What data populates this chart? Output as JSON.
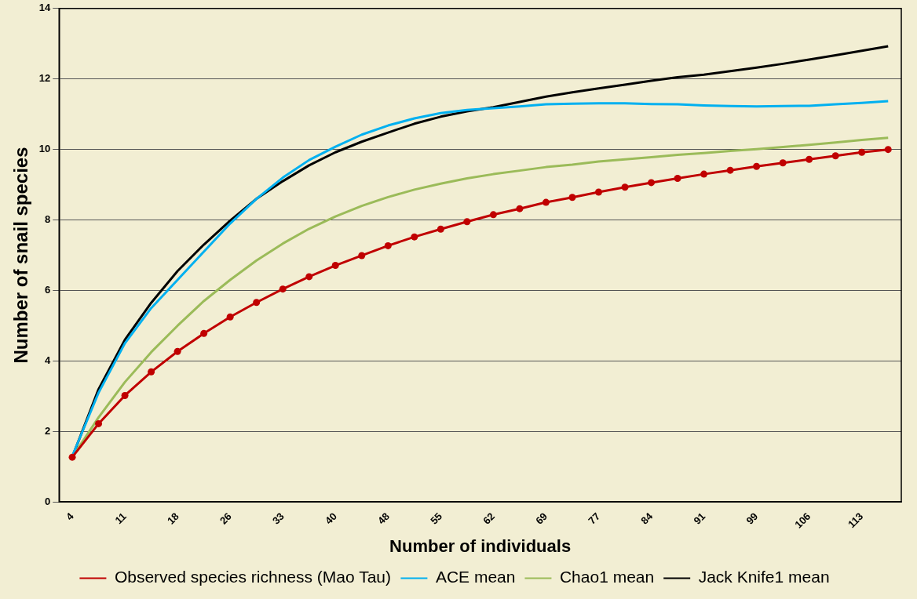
{
  "chart_data": {
    "type": "line",
    "xlabel": "Number of individuals",
    "ylabel": "Number of snail species",
    "categories": [
      "4",
      null,
      "11",
      null,
      "18",
      null,
      "26",
      null,
      "33",
      null,
      "40",
      null,
      "48",
      null,
      "55",
      null,
      "62",
      null,
      "69",
      null,
      "77",
      null,
      "84",
      null,
      "91",
      null,
      "99",
      null,
      "106",
      null,
      "113",
      null
    ],
    "series": [
      {
        "name": "Observed species richness (Mao Tau)",
        "color": "#c00000",
        "marker": "circle",
        "values": [
          1.27,
          2.22,
          3.02,
          3.69,
          4.27,
          4.78,
          5.25,
          5.66,
          6.04,
          6.39,
          6.71,
          6.99,
          7.27,
          7.52,
          7.74,
          7.95,
          8.15,
          8.32,
          8.5,
          8.64,
          8.79,
          8.93,
          9.06,
          9.18,
          9.3,
          9.41,
          9.52,
          9.62,
          9.72,
          9.82,
          9.92,
          10.0
        ]
      },
      {
        "name": "ACE mean",
        "color": "#00b0f0",
        "marker": "none",
        "values": [
          1.3,
          3.1,
          4.5,
          5.5,
          6.3,
          7.1,
          7.9,
          8.6,
          9.2,
          9.7,
          10.08,
          10.42,
          10.68,
          10.88,
          11.03,
          11.12,
          11.17,
          11.22,
          11.28,
          11.3,
          11.31,
          11.31,
          11.29,
          11.28,
          11.25,
          11.23,
          11.22,
          11.23,
          11.24,
          11.28,
          11.32,
          11.37
        ]
      },
      {
        "name": "Chao1 mean",
        "color": "#9bbb59",
        "marker": "none",
        "values": [
          1.27,
          2.4,
          3.4,
          4.25,
          5.0,
          5.7,
          6.3,
          6.85,
          7.33,
          7.75,
          8.1,
          8.4,
          8.65,
          8.86,
          9.03,
          9.18,
          9.3,
          9.4,
          9.5,
          9.57,
          9.66,
          9.72,
          9.78,
          9.85,
          9.9,
          9.96,
          10.01,
          10.07,
          10.13,
          10.2,
          10.27,
          10.33
        ]
      },
      {
        "name": "Jack Knife1 mean",
        "color": "#000000",
        "marker": "none",
        "values": [
          1.27,
          3.2,
          4.6,
          5.65,
          6.55,
          7.3,
          7.98,
          8.6,
          9.1,
          9.55,
          9.92,
          10.22,
          10.48,
          10.73,
          10.93,
          11.08,
          11.2,
          11.35,
          11.5,
          11.62,
          11.73,
          11.84,
          11.95,
          12.05,
          12.12,
          12.22,
          12.32,
          12.43,
          12.55,
          12.67,
          12.8,
          12.93
        ]
      }
    ],
    "ylim": [
      0,
      14
    ],
    "yticks": [
      0,
      2,
      4,
      6,
      8,
      10,
      12,
      14
    ],
    "grid": "y",
    "legend": "bottom"
  }
}
